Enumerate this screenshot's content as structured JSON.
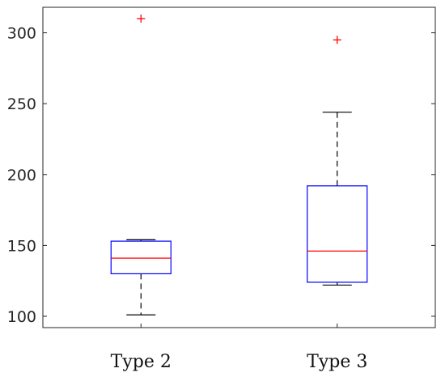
{
  "chart_data": {
    "type": "boxplot",
    "categories": [
      "Type 2",
      "Type 3"
    ],
    "ylim": [
      92,
      318
    ],
    "yticks": [
      100,
      150,
      200,
      250,
      300
    ],
    "grid": false,
    "colors": {
      "box": "#0000ff",
      "median": "#ff0000",
      "whisker": "#000000",
      "outlier": "#ff0000",
      "axes": "#262626"
    },
    "boxes": [
      {
        "category": "Type 2",
        "whisker_low": 101,
        "q1": 130,
        "median": 141,
        "q3": 153,
        "whisker_high": 154,
        "outliers": [
          310
        ]
      },
      {
        "category": "Type 3",
        "whisker_low": 122,
        "q1": 124,
        "median": 146,
        "q3": 192,
        "whisker_high": 244,
        "outliers": [
          295
        ]
      }
    ]
  }
}
